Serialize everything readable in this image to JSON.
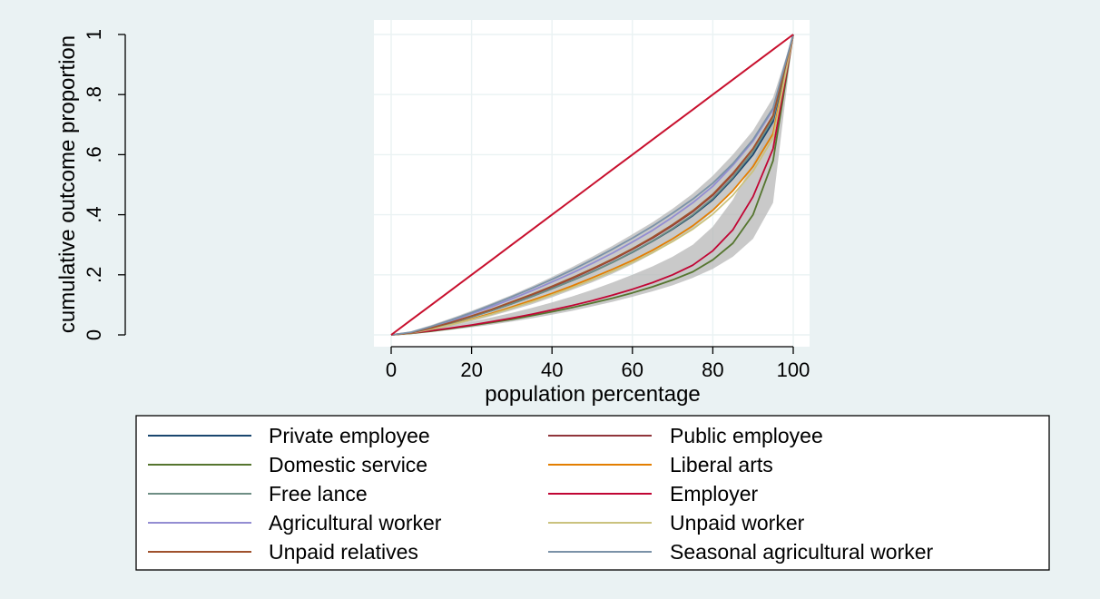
{
  "chart_data": {
    "type": "line",
    "xlabel": "population percentage",
    "ylabel": "cumulative outcome proportion",
    "xlim": [
      0,
      100
    ],
    "ylim": [
      0,
      1
    ],
    "x_ticks": [
      "0",
      "20",
      "40",
      "60",
      "80",
      "100"
    ],
    "y_ticks": [
      "0",
      ".2",
      ".4",
      ".6",
      ".8",
      "1"
    ],
    "grid": true,
    "legend_position": "bottom",
    "x": [
      0,
      5,
      10,
      15,
      20,
      25,
      30,
      35,
      40,
      45,
      50,
      55,
      60,
      65,
      70,
      75,
      80,
      85,
      90,
      95,
      100
    ],
    "equality_line": {
      "color": "#c8102e",
      "values": [
        0,
        0.05,
        0.1,
        0.15,
        0.2,
        0.25,
        0.3,
        0.35,
        0.4,
        0.45,
        0.5,
        0.55,
        0.6,
        0.65,
        0.7,
        0.75,
        0.8,
        0.85,
        0.9,
        0.95,
        1
      ]
    },
    "confidence_bands": [
      {
        "lower": [
          0,
          0.004,
          0.015,
          0.029,
          0.045,
          0.063,
          0.082,
          0.102,
          0.125,
          0.15,
          0.175,
          0.203,
          0.235,
          0.27,
          0.31,
          0.355,
          0.41,
          0.48,
          0.56,
          0.66,
          1
        ],
        "upper": [
          0,
          0.012,
          0.033,
          0.056,
          0.08,
          0.106,
          0.133,
          0.162,
          0.193,
          0.226,
          0.26,
          0.296,
          0.335,
          0.375,
          0.42,
          0.47,
          0.53,
          0.6,
          0.68,
          0.79,
          1
        ]
      },
      {
        "lower": [
          0,
          0.004,
          0.01,
          0.017,
          0.025,
          0.034,
          0.044,
          0.055,
          0.067,
          0.08,
          0.095,
          0.11,
          0.127,
          0.145,
          0.165,
          0.19,
          0.22,
          0.26,
          0.32,
          0.44,
          1
        ],
        "upper": [
          0,
          0.008,
          0.018,
          0.03,
          0.044,
          0.058,
          0.073,
          0.09,
          0.108,
          0.128,
          0.15,
          0.174,
          0.2,
          0.228,
          0.26,
          0.3,
          0.36,
          0.45,
          0.57,
          0.72,
          1
        ]
      }
    ],
    "series": [
      {
        "name": "Private employee",
        "color": "#1a476f",
        "values": [
          0,
          0.007,
          0.022,
          0.04,
          0.06,
          0.081,
          0.104,
          0.128,
          0.154,
          0.181,
          0.21,
          0.241,
          0.275,
          0.312,
          0.352,
          0.397,
          0.45,
          0.52,
          0.6,
          0.71,
          1
        ]
      },
      {
        "name": "Public employee",
        "color": "#90353b",
        "values": [
          0,
          0.007,
          0.023,
          0.042,
          0.062,
          0.084,
          0.108,
          0.133,
          0.16,
          0.188,
          0.218,
          0.25,
          0.285,
          0.322,
          0.364,
          0.41,
          0.465,
          0.535,
          0.62,
          0.73,
          1
        ]
      },
      {
        "name": "Domestic service",
        "color": "#55752f",
        "values": [
          0,
          0.005,
          0.012,
          0.021,
          0.031,
          0.041,
          0.052,
          0.064,
          0.077,
          0.091,
          0.106,
          0.122,
          0.14,
          0.16,
          0.183,
          0.21,
          0.25,
          0.305,
          0.4,
          0.58,
          1
        ]
      },
      {
        "name": "Liberal arts",
        "color": "#e37e00",
        "values": [
          0,
          0.006,
          0.019,
          0.035,
          0.053,
          0.072,
          0.093,
          0.115,
          0.138,
          0.163,
          0.19,
          0.218,
          0.248,
          0.282,
          0.32,
          0.363,
          0.415,
          0.48,
          0.56,
          0.67,
          1
        ]
      },
      {
        "name": "Free lance",
        "color": "#6e8e84",
        "values": [
          0,
          0.007,
          0.022,
          0.04,
          0.06,
          0.081,
          0.104,
          0.128,
          0.154,
          0.181,
          0.21,
          0.241,
          0.276,
          0.313,
          0.354,
          0.4,
          0.455,
          0.525,
          0.61,
          0.72,
          1
        ]
      },
      {
        "name": "Employer",
        "color": "#c10534",
        "values": [
          0,
          0.006,
          0.014,
          0.023,
          0.033,
          0.044,
          0.056,
          0.069,
          0.083,
          0.098,
          0.114,
          0.132,
          0.152,
          0.174,
          0.2,
          0.232,
          0.28,
          0.35,
          0.46,
          0.62,
          1
        ]
      },
      {
        "name": "Agricultural worker",
        "color": "#938dd2",
        "values": [
          0,
          0.008,
          0.026,
          0.047,
          0.07,
          0.094,
          0.12,
          0.147,
          0.176,
          0.206,
          0.238,
          0.272,
          0.309,
          0.348,
          0.392,
          0.44,
          0.495,
          0.565,
          0.645,
          0.75,
          1
        ]
      },
      {
        "name": "Unpaid worker",
        "color": "#cac27e",
        "values": [
          0,
          0.006,
          0.019,
          0.034,
          0.051,
          0.069,
          0.089,
          0.11,
          0.133,
          0.157,
          0.183,
          0.211,
          0.241,
          0.274,
          0.311,
          0.352,
          0.402,
          0.465,
          0.545,
          0.655,
          1
        ]
      },
      {
        "name": "Unpaid relatives",
        "color": "#a0522d",
        "values": [
          0,
          0.007,
          0.023,
          0.042,
          0.063,
          0.085,
          0.11,
          0.135,
          0.162,
          0.19,
          0.22,
          0.252,
          0.287,
          0.325,
          0.367,
          0.413,
          0.468,
          0.538,
          0.62,
          0.73,
          1
        ]
      },
      {
        "name": "Seasonal agricultural worker",
        "color": "#7b92a8",
        "values": [
          0,
          0.009,
          0.028,
          0.05,
          0.074,
          0.1,
          0.127,
          0.155,
          0.185,
          0.216,
          0.25,
          0.285,
          0.322,
          0.362,
          0.405,
          0.452,
          0.505,
          0.57,
          0.65,
          0.755,
          1
        ]
      }
    ]
  }
}
